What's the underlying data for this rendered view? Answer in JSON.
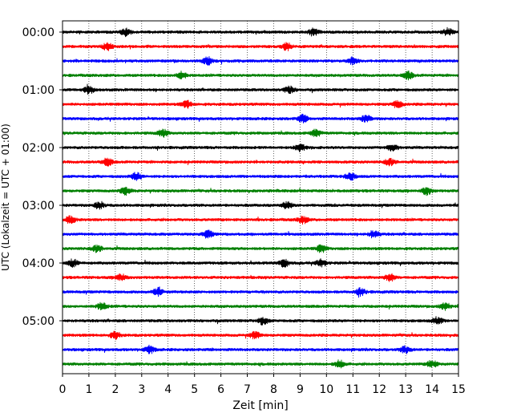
{
  "chart_data": {
    "type": "line",
    "title": "",
    "xlabel": "Zeit  [min]",
    "ylabel": "UTC (Lokalzeit = UTC + 01:00)",
    "xlim": [
      0,
      15
    ],
    "x_ticks": [
      "0",
      "1",
      "2",
      "3",
      "4",
      "5",
      "6",
      "7",
      "8",
      "9",
      "10",
      "11",
      "12",
      "13",
      "14",
      "15"
    ],
    "y_tick_labels": [
      "00:00",
      "01:00",
      "02:00",
      "03:00",
      "04:00",
      "05:00"
    ],
    "minutes_per_trace": 15,
    "trace_count": 24,
    "trace_color_cycle": [
      "#000000",
      "#ff0000",
      "#0000ff",
      "#008000"
    ],
    "grid": "vertical dotted lines at every minute",
    "series": [
      {
        "start": "00:00",
        "color": "#000000",
        "bursts": [
          2.4,
          9.5,
          14.6
        ]
      },
      {
        "start": "00:15",
        "color": "#ff0000",
        "bursts": [
          1.7,
          8.5
        ]
      },
      {
        "start": "00:30",
        "color": "#0000ff",
        "bursts": [
          5.5,
          11.0
        ]
      },
      {
        "start": "00:45",
        "color": "#008000",
        "bursts": [
          4.5,
          13.1
        ]
      },
      {
        "start": "01:00",
        "color": "#000000",
        "bursts": [
          1.0,
          8.6
        ]
      },
      {
        "start": "01:15",
        "color": "#ff0000",
        "bursts": [
          4.7,
          12.7
        ]
      },
      {
        "start": "01:30",
        "color": "#0000ff",
        "bursts": [
          9.1,
          11.5
        ]
      },
      {
        "start": "01:45",
        "color": "#008000",
        "bursts": [
          3.8,
          9.6
        ]
      },
      {
        "start": "02:00",
        "color": "#000000",
        "bursts": [
          9.0,
          12.5
        ]
      },
      {
        "start": "02:15",
        "color": "#ff0000",
        "bursts": [
          1.7,
          12.4
        ]
      },
      {
        "start": "02:30",
        "color": "#0000ff",
        "bursts": [
          2.8,
          10.9
        ]
      },
      {
        "start": "02:45",
        "color": "#008000",
        "bursts": [
          2.4,
          13.8
        ]
      },
      {
        "start": "03:00",
        "color": "#000000",
        "bursts": [
          1.4,
          8.5
        ]
      },
      {
        "start": "03:15",
        "color": "#ff0000",
        "bursts": [
          0.3,
          9.1
        ]
      },
      {
        "start": "03:30",
        "color": "#0000ff",
        "bursts": [
          5.5,
          11.8
        ]
      },
      {
        "start": "03:45",
        "color": "#008000",
        "bursts": [
          1.3,
          9.8
        ]
      },
      {
        "start": "04:00",
        "color": "#000000",
        "bursts": [
          0.4,
          8.4,
          9.8
        ]
      },
      {
        "start": "04:15",
        "color": "#ff0000",
        "bursts": [
          2.2,
          12.4
        ]
      },
      {
        "start": "04:30",
        "color": "#0000ff",
        "bursts": [
          3.6,
          11.3
        ]
      },
      {
        "start": "04:45",
        "color": "#008000",
        "bursts": [
          1.5,
          14.5
        ]
      },
      {
        "start": "05:00",
        "color": "#000000",
        "bursts": [
          7.6,
          14.2
        ]
      },
      {
        "start": "05:15",
        "color": "#ff0000",
        "bursts": [
          2.0,
          7.3
        ]
      },
      {
        "start": "05:30",
        "color": "#0000ff",
        "bursts": [
          3.3,
          13.0
        ]
      },
      {
        "start": "05:45",
        "color": "#008000",
        "bursts": [
          10.5,
          14.0
        ]
      }
    ]
  }
}
